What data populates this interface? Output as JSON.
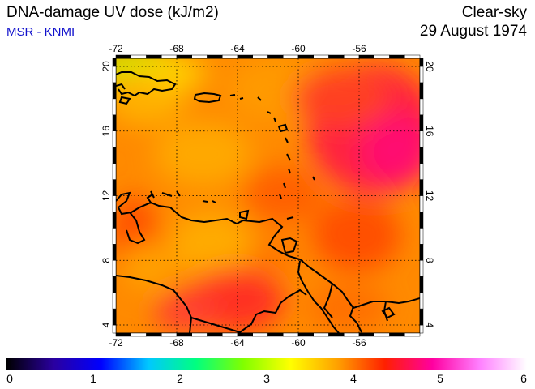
{
  "header": {
    "title": "DNA-damage UV dose (kJ/m2)",
    "subtitle": "MSR - KNMI",
    "condition": "Clear-sky",
    "date": "29 August 1974"
  },
  "map": {
    "lon_labels": [
      "-72",
      "-68",
      "-64",
      "-60",
      "-56"
    ],
    "lat_labels": [
      "4",
      "8",
      "12",
      "16",
      "20"
    ],
    "lon_range": [
      -72,
      -52
    ],
    "lat_range": [
      3.5,
      20.5
    ],
    "gridlines": "dotted"
  },
  "colorbar": {
    "ticks": [
      "0",
      "1",
      "2",
      "3",
      "4",
      "5",
      "6"
    ],
    "range": [
      0,
      6
    ],
    "colors": [
      "#000000",
      "#2a00a0",
      "#0000ff",
      "#00c8ff",
      "#00ff80",
      "#80ff00",
      "#ffff00",
      "#ffa000",
      "#ff2000",
      "#ff00a0",
      "#ff80ff",
      "#ffffff"
    ]
  }
}
